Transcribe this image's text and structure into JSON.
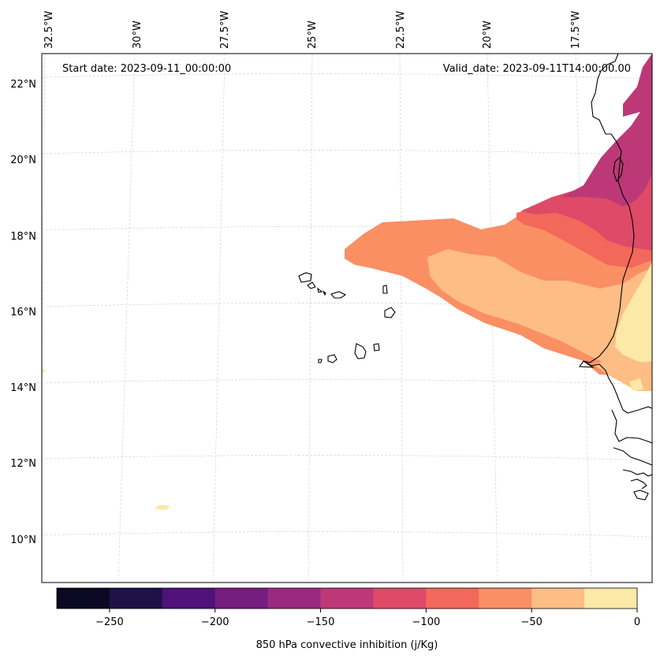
{
  "map": {
    "start_label": "Start date: 2023-09-11_00:00:00",
    "valid_label": "Valid_date: 2023-09-11T14:00:00.00",
    "lon_labels": [
      "32.5°W",
      "30°W",
      "27.5°W",
      "25°W",
      "22.5°W",
      "20°W",
      "17.5°W"
    ],
    "lat_labels": [
      "22°N",
      "20°N",
      "18°N",
      "16°N",
      "14°N",
      "12°N",
      "10°N"
    ]
  },
  "colorbar": {
    "label": "850 hPa convective inhibition (j/Kg)",
    "ticks": [
      "−250",
      "−200",
      "−150",
      "−100",
      "−50",
      "0"
    ],
    "colors": [
      "#0a0822",
      "#211149",
      "#4f117a",
      "#761d80",
      "#992a80",
      "#bd3877",
      "#de4a68",
      "#f2685b",
      "#fa8f64",
      "#fdbd85",
      "#fce8a7"
    ]
  },
  "colors": {
    "coast": "#000000",
    "grid": "#cccccc",
    "cin_m150_m125": "#bd3877",
    "cin_m125_m100": "#de4a68",
    "cin_m100_m75": "#f2685b",
    "cin_m75_m50": "#fa8f64",
    "cin_m50_m25": "#fdbd85",
    "cin_m25_0": "#fce8a7"
  }
}
